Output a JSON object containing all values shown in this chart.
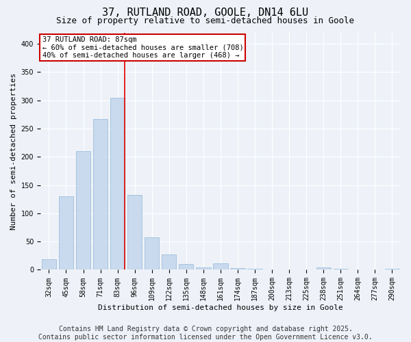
{
  "title": "37, RUTLAND ROAD, GOOLE, DN14 6LU",
  "subtitle": "Size of property relative to semi-detached houses in Goole",
  "xlabel": "Distribution of semi-detached houses by size in Goole",
  "ylabel": "Number of semi-detached properties",
  "footer_line1": "Contains HM Land Registry data © Crown copyright and database right 2025.",
  "footer_line2": "Contains public sector information licensed under the Open Government Licence v3.0.",
  "categories": [
    "32sqm",
    "45sqm",
    "58sqm",
    "71sqm",
    "83sqm",
    "96sqm",
    "109sqm",
    "122sqm",
    "135sqm",
    "148sqm",
    "161sqm",
    "174sqm",
    "187sqm",
    "200sqm",
    "213sqm",
    "225sqm",
    "238sqm",
    "251sqm",
    "264sqm",
    "277sqm",
    "290sqm"
  ],
  "values": [
    19,
    130,
    210,
    267,
    305,
    132,
    57,
    27,
    10,
    4,
    12,
    3,
    2,
    1,
    1,
    0,
    4,
    2,
    0,
    0,
    2
  ],
  "bar_color": "#c9d9ee",
  "bar_edge_color": "#8fb8d8",
  "highlight_bin": 4,
  "red_line_color": "#dd0000",
  "annotation_title": "37 RUTLAND ROAD: 87sqm",
  "annotation_line1": "← 60% of semi-detached houses are smaller (708)",
  "annotation_line2": "40% of semi-detached houses are larger (468) →",
  "annotation_box_color": "#ffffff",
  "annotation_box_edge": "#cc0000",
  "ylim": [
    0,
    420
  ],
  "yticks": [
    0,
    50,
    100,
    150,
    200,
    250,
    300,
    350,
    400
  ],
  "background_color": "#eef2f8",
  "grid_color": "#ffffff",
  "title_fontsize": 11,
  "subtitle_fontsize": 9,
  "axis_label_fontsize": 8,
  "tick_fontsize": 7,
  "annotation_fontsize": 7.5,
  "footer_fontsize": 7
}
